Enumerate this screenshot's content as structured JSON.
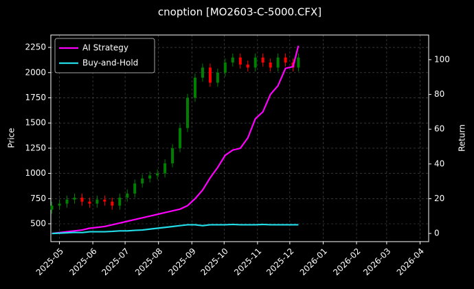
{
  "chart_data": {
    "type": "candlestick",
    "title": "cnoption [MO2603-C-5000.CFX]",
    "ylabel": "Price",
    "y2label": "Return",
    "up_color": "#008000",
    "down_color": "#ff0000",
    "grid": true,
    "legend": "upper-left",
    "x": [
      "2025-04-24",
      "2025-05-01",
      "2025-05-08",
      "2025-05-15",
      "2025-05-22",
      "2025-05-29",
      "2025-06-05",
      "2025-06-12",
      "2025-06-19",
      "2025-06-26",
      "2025-07-03",
      "2025-07-10",
      "2025-07-17",
      "2025-07-24",
      "2025-07-31",
      "2025-08-07",
      "2025-08-14",
      "2025-08-21",
      "2025-08-28",
      "2025-09-04",
      "2025-09-11",
      "2025-09-18",
      "2025-09-25",
      "2025-10-02",
      "2025-10-09",
      "2025-10-16",
      "2025-10-23",
      "2025-10-30",
      "2025-11-06",
      "2025-11-13",
      "2025-11-20",
      "2025-11-27",
      "2025-12-04",
      "2025-12-09"
    ],
    "open": [
      640,
      680,
      700,
      740,
      760,
      720,
      700,
      740,
      720,
      680,
      760,
      800,
      900,
      950,
      980,
      1000,
      1100,
      1250,
      1450,
      1750,
      1950,
      2050,
      1900,
      2000,
      2100,
      2150,
      2080,
      2050,
      2150,
      2100,
      2050,
      2150,
      2100,
      2050
    ],
    "high": [
      720,
      740,
      780,
      800,
      800,
      760,
      780,
      780,
      760,
      800,
      840,
      940,
      990,
      1020,
      1040,
      1140,
      1290,
      1490,
      1790,
      1990,
      2090,
      2090,
      2040,
      2140,
      2190,
      2190,
      2120,
      2190,
      2190,
      2140,
      2190,
      2190,
      2140,
      2190
    ],
    "low": [
      600,
      640,
      660,
      700,
      680,
      660,
      660,
      680,
      640,
      640,
      720,
      760,
      860,
      910,
      940,
      960,
      1060,
      1210,
      1410,
      1710,
      1910,
      1860,
      1860,
      1960,
      2060,
      2040,
      2010,
      2010,
      2060,
      2010,
      2010,
      2060,
      2010,
      2010
    ],
    "close": [
      680,
      700,
      740,
      760,
      720,
      700,
      740,
      720,
      680,
      760,
      800,
      900,
      950,
      980,
      1000,
      1100,
      1250,
      1450,
      1750,
      1950,
      2050,
      1900,
      2000,
      2100,
      2150,
      2080,
      2050,
      2150,
      2100,
      2050,
      2150,
      2100,
      2050,
      2150
    ],
    "series": [
      {
        "name": "AI Strategy",
        "color": "#ff00ff",
        "axis": "y2",
        "values": [
          0,
          0.5,
          1,
          1.5,
          2,
          3,
          3.5,
          4,
          5,
          6,
          7,
          8,
          9,
          10,
          11,
          12,
          13,
          14,
          16,
          20,
          25,
          32,
          38,
          45,
          48,
          49,
          55,
          66,
          70,
          80,
          85,
          95,
          96,
          108
        ]
      },
      {
        "name": "Buy-and-Hold",
        "color": "#22dde8",
        "axis": "y2",
        "values": [
          0,
          0.2,
          0.4,
          0.6,
          0.5,
          1,
          1,
          1,
          1.2,
          1.5,
          1.5,
          1.8,
          2,
          2.5,
          3,
          3.5,
          4,
          4.5,
          5,
          5,
          4.5,
          5,
          5,
          5,
          5.2,
          5,
          5,
          5,
          5.2,
          5,
          5,
          5,
          5,
          5
        ]
      }
    ],
    "xlim": [
      "2025-04-23",
      "2026-04-09"
    ],
    "xticks": [
      {
        "value": "2025-05-01",
        "label": "2025-05"
      },
      {
        "value": "2025-06-01",
        "label": "2025-06"
      },
      {
        "value": "2025-07-01",
        "label": "2025-07"
      },
      {
        "value": "2025-08-01",
        "label": "2025-08"
      },
      {
        "value": "2025-09-01",
        "label": "2025-09"
      },
      {
        "value": "2025-10-01",
        "label": "2025-10"
      },
      {
        "value": "2025-11-01",
        "label": "2025-11"
      },
      {
        "value": "2025-12-01",
        "label": "2025-12"
      },
      {
        "value": "2026-01-01",
        "label": "2026-01"
      },
      {
        "value": "2026-02-01",
        "label": "2026-02"
      },
      {
        "value": "2026-03-01",
        "label": "2026-03"
      },
      {
        "value": "2026-04-01",
        "label": "2026-04"
      }
    ],
    "ylim": [
      323,
      2373
    ],
    "yticks": [
      500,
      750,
      1000,
      1250,
      1500,
      1750,
      2000,
      2250
    ],
    "y2lim": [
      -4.7,
      114.2
    ],
    "y2ticks": [
      0,
      20,
      40,
      60,
      80,
      100
    ]
  }
}
